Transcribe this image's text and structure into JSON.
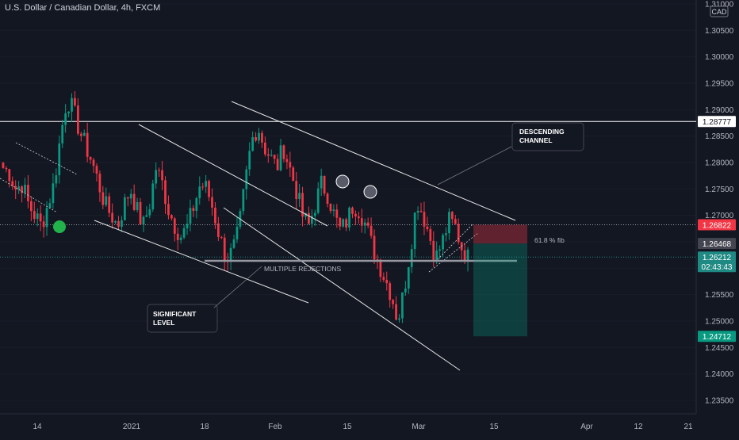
{
  "chart_data": {
    "type": "candlestick",
    "title": "U.S. Dollar / Canadian Dollar, 4h, FXCM",
    "currency": "CAD",
    "y_ticks": [
      "1.31000",
      "1.30500",
      "1.30000",
      "1.29500",
      "1.29000",
      "1.28500",
      "1.28000",
      "1.27500",
      "1.27000",
      "1.26500",
      "1.26000",
      "1.25500",
      "1.25000",
      "1.24500",
      "1.24000",
      "1.23500"
    ],
    "x_ticks": [
      "14",
      "2021",
      "18",
      "Feb",
      "15",
      "Mar",
      "15",
      "Apr",
      "12",
      "21"
    ],
    "ylim": [
      1.23,
      1.31
    ],
    "price_labels": [
      {
        "name": "level-line",
        "value": "1.28777",
        "color": "#ffffff",
        "text_color": "#131722"
      },
      {
        "name": "stop",
        "value": "1.26822",
        "color": "#f23645",
        "text_color": "#ffffff"
      },
      {
        "name": "entry",
        "value": "1.26468",
        "color": "#434651",
        "text_color": "#ffffff"
      },
      {
        "name": "last",
        "value": "1.26212",
        "sub": "02:43:43",
        "color": "#1f8a83",
        "text_color": "#ffffff"
      },
      {
        "name": "target",
        "value": "1.24712",
        "color": "#089981",
        "text_color": "#ffffff"
      }
    ],
    "annotations": {
      "descending_channel": "DESCENDING\nCHANNEL",
      "multiple_rejections": "MULTIPLE REJECTIONS",
      "significant_level": "SIGNIFICANT\nLEVEL",
      "fib": "61.8 % fib"
    },
    "series": [
      {
        "name": "USDCAD",
        "ohlc_close": [
          1.279,
          1.278,
          1.275,
          1.276,
          1.272,
          1.27,
          1.268,
          1.272,
          1.276,
          1.285,
          1.292,
          1.29,
          1.286,
          1.283,
          1.28,
          1.276,
          1.272,
          1.27,
          1.268,
          1.272,
          1.275,
          1.271,
          1.268,
          1.272,
          1.279,
          1.276,
          1.271,
          1.268,
          1.266,
          1.268,
          1.272,
          1.276,
          1.275,
          1.271,
          1.266,
          1.262,
          1.263,
          1.267,
          1.276,
          1.284,
          1.287,
          1.283,
          1.281,
          1.279,
          1.283,
          1.279,
          1.275,
          1.27,
          1.268,
          1.272,
          1.276,
          1.274,
          1.27,
          1.267,
          1.269,
          1.272,
          1.271,
          1.268,
          1.264,
          1.261,
          1.258,
          1.255,
          1.25,
          1.256,
          1.264,
          1.273,
          1.27,
          1.266,
          1.262,
          1.265,
          1.269,
          1.268,
          1.264,
          1.262
        ]
      }
    ],
    "colors": {
      "up": "#089981",
      "down": "#f23645",
      "background": "#131722",
      "grid": "#1e222d",
      "axis_text": "#b2b5be"
    }
  }
}
